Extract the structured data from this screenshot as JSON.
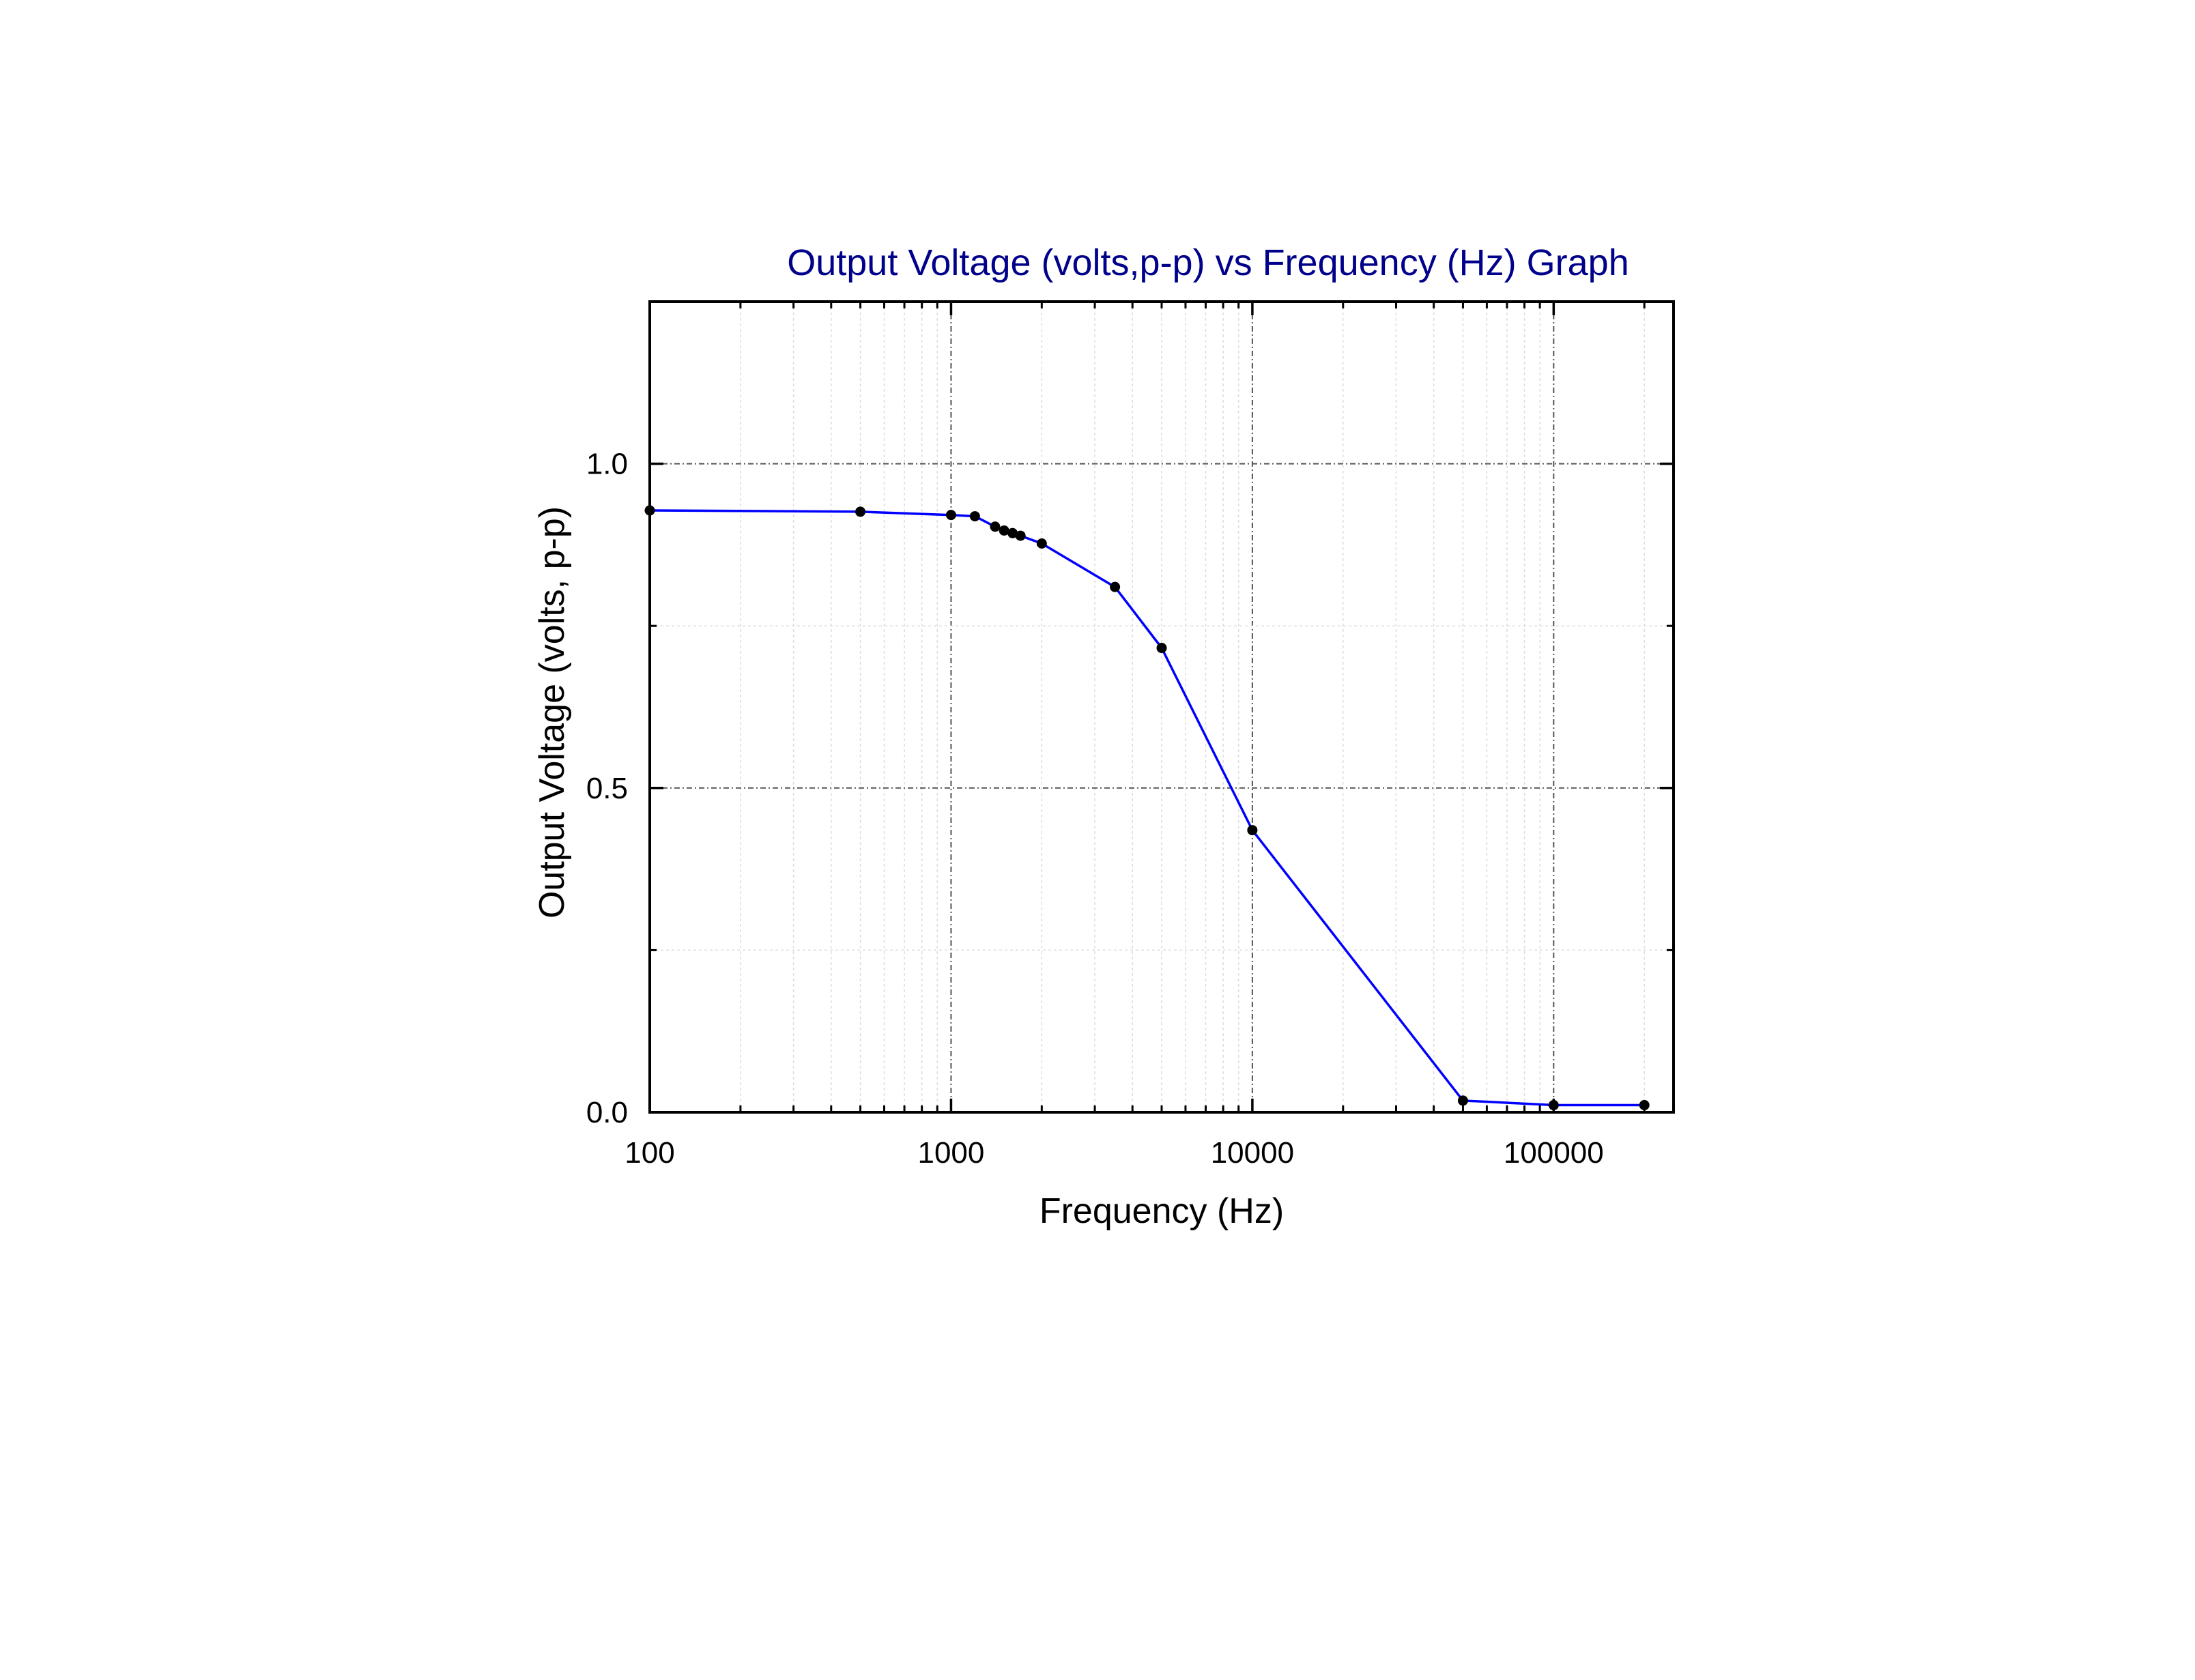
{
  "chart_data": {
    "type": "line",
    "title": "Output Voltage (volts,p-p) vs Frequency (Hz) Graph",
    "xlabel": "Frequency (Hz)",
    "ylabel": "Output Voltage (volts, p-p)",
    "xscale": "log",
    "xlim": [
      100,
      250000
    ],
    "ylim": [
      0,
      1.25
    ],
    "xticks": [
      "100",
      "1000",
      "10000",
      "100000"
    ],
    "yticks": [
      "0.0",
      "0.5",
      "1.0"
    ],
    "grid": true,
    "legend": "none",
    "series": [
      {
        "line_color": "#0000ff",
        "marker_color": "#000000",
        "x": [
          100,
          500,
          1000,
          1200,
          1400,
          1500,
          1600,
          1700,
          2000,
          3500,
          5000,
          10000,
          50000,
          100000,
          200000
        ],
        "y": [
          0.928,
          0.926,
          0.921,
          0.919,
          0.903,
          0.897,
          0.893,
          0.889,
          0.877,
          0.81,
          0.716,
          0.435,
          0.018,
          0.011,
          0.011
        ]
      }
    ],
    "colors": {
      "title": "#00008b",
      "line": "#0000ff",
      "marker": "#000000",
      "axis": "#000000"
    }
  }
}
